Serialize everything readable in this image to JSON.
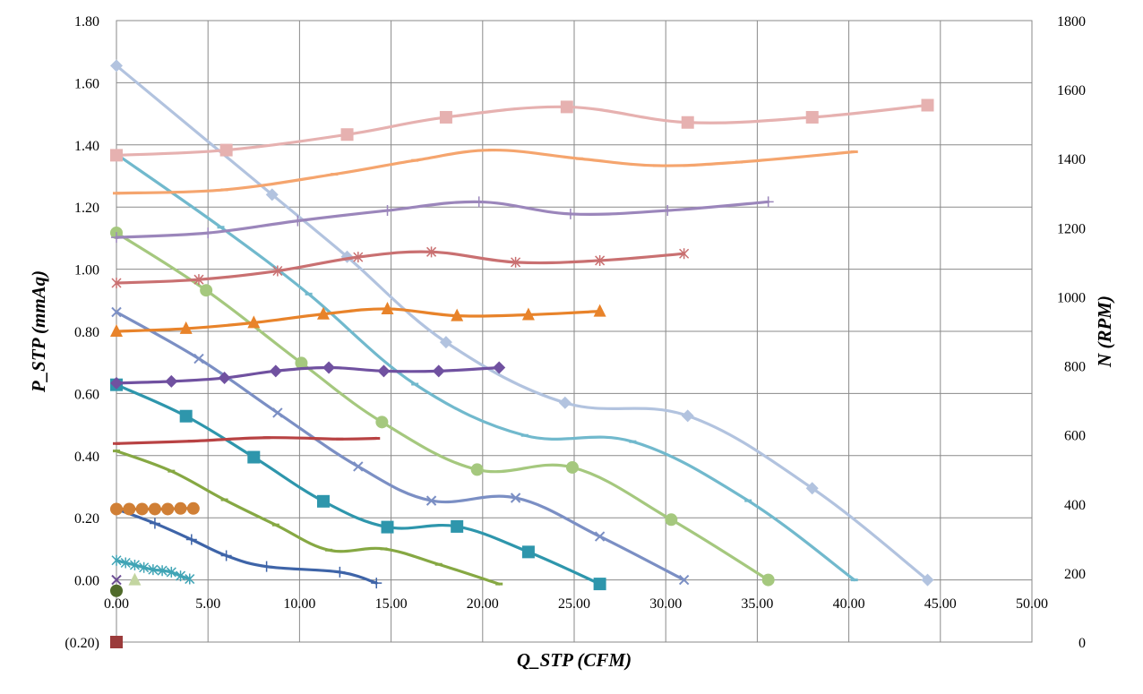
{
  "chart_data": {
    "type": "line",
    "title": "",
    "xlabel": "Q_STP (CFM)",
    "ylabel": "P_STP (mmAq)",
    "y2label": "N (RPM)",
    "xlim": [
      0,
      50
    ],
    "ylim": [
      -0.2,
      1.8
    ],
    "y2lim": [
      0,
      1800
    ],
    "x_ticks": [
      "0.00",
      "5.00",
      "10.00",
      "15.00",
      "20.00",
      "25.00",
      "30.00",
      "35.00",
      "40.00",
      "45.00",
      "50.00"
    ],
    "y_ticks": [
      "(0.20)",
      "0.00",
      "0.20",
      "0.40",
      "0.60",
      "0.80",
      "1.00",
      "1.20",
      "1.40",
      "1.60",
      "1.80"
    ],
    "y2_ticks": [
      "0",
      "200",
      "400",
      "600",
      "800",
      "1000",
      "1200",
      "1400",
      "1600",
      "1800"
    ],
    "grid": true,
    "legend": "none",
    "series": [
      {
        "axis": "left",
        "color": "#B2C3DF",
        "marker": "diamond",
        "points": [
          [
            0,
            1.655
          ],
          [
            8.5,
            1.24
          ],
          [
            12.6,
            1.04
          ],
          [
            18,
            0.765
          ],
          [
            24.5,
            0.57
          ],
          [
            31.2,
            0.528
          ],
          [
            38,
            0.295
          ],
          [
            44.3,
            0.0
          ]
        ]
      },
      {
        "axis": "left",
        "color": "#71B9CD",
        "marker": "dash",
        "points": [
          [
            0,
            1.37
          ],
          [
            5.7,
            1.135
          ],
          [
            10.5,
            0.92
          ],
          [
            16.3,
            0.63
          ],
          [
            22.3,
            0.465
          ],
          [
            28.2,
            0.445
          ],
          [
            34.5,
            0.255
          ],
          [
            40.3,
            0.0
          ]
        ]
      },
      {
        "axis": "left",
        "color": "#A5C87E",
        "marker": "circle",
        "points": [
          [
            0,
            1.117
          ],
          [
            4.9,
            0.932
          ],
          [
            10.1,
            0.698
          ],
          [
            14.5,
            0.508
          ],
          [
            19.7,
            0.355
          ],
          [
            24.9,
            0.362
          ],
          [
            30.3,
            0.194
          ],
          [
            35.6,
            0.0
          ]
        ]
      },
      {
        "axis": "left",
        "color": "#7B8FC4",
        "marker": "x",
        "points": [
          [
            0,
            0.862
          ],
          [
            4.5,
            0.712
          ],
          [
            8.8,
            0.538
          ],
          [
            13.2,
            0.365
          ],
          [
            17.2,
            0.255
          ],
          [
            21.8,
            0.264
          ],
          [
            26.4,
            0.14
          ],
          [
            31.0,
            0.0
          ]
        ]
      },
      {
        "axis": "left",
        "color": "#2E96AC",
        "marker": "square",
        "points": [
          [
            0,
            0.628
          ],
          [
            3.8,
            0.527
          ],
          [
            7.5,
            0.395
          ],
          [
            11.3,
            0.253
          ],
          [
            14.8,
            0.17
          ],
          [
            18.6,
            0.172
          ],
          [
            22.5,
            0.09
          ],
          [
            26.4,
            -0.013
          ]
        ]
      },
      {
        "axis": "left",
        "color": "#86A843",
        "marker": "dash",
        "points": [
          [
            0,
            0.415
          ],
          [
            3,
            0.35
          ],
          [
            5.9,
            0.258
          ],
          [
            8.7,
            0.177
          ],
          [
            11.6,
            0.096
          ],
          [
            14.6,
            0.1
          ],
          [
            17.6,
            0.05
          ],
          [
            20.9,
            -0.013
          ]
        ]
      },
      {
        "axis": "left",
        "color": "#3E64A8",
        "marker": "plus",
        "points": [
          [
            0,
            0.228
          ],
          [
            2.1,
            0.182
          ],
          [
            4.1,
            0.13
          ],
          [
            6,
            0.078
          ],
          [
            8.2,
            0.043
          ],
          [
            12.2,
            0.025
          ],
          [
            14.2,
            -0.01
          ]
        ]
      },
      {
        "axis": "left",
        "color": "#D07F35",
        "marker": "circle",
        "points": [
          [
            0,
            0.228
          ],
          [
            0.7,
            0.228
          ],
          [
            1.4,
            0.228
          ],
          [
            2.1,
            0.228
          ],
          [
            2.8,
            0.228
          ],
          [
            3.5,
            0.23
          ],
          [
            4.2,
            0.23
          ]
        ]
      },
      {
        "axis": "left",
        "color": "#40A4B5",
        "marker": "star",
        "points": [
          [
            0,
            0.063
          ],
          [
            0.5,
            0.055
          ],
          [
            1,
            0.048
          ],
          [
            1.5,
            0.04
          ],
          [
            2,
            0.033
          ],
          [
            2.5,
            0.03
          ],
          [
            3,
            0.025
          ],
          [
            3.5,
            0.013
          ],
          [
            4,
            0.003
          ]
        ]
      },
      {
        "axis": "left",
        "color": "#6B4C93",
        "marker": "x",
        "points": [
          [
            0,
            0.0
          ]
        ]
      },
      {
        "axis": "left",
        "color": "#C3D5A0",
        "marker": "triangle",
        "points": [
          [
            1,
            0.0
          ]
        ]
      },
      {
        "axis": "left",
        "color": "#4F6A2A",
        "marker": "circle",
        "points": [
          [
            0,
            -0.035
          ]
        ]
      },
      {
        "axis": "left",
        "color": "#9B3B3B",
        "marker": "square",
        "points": [
          [
            0,
            -0.2
          ]
        ]
      },
      {
        "axis": "right",
        "color": "#E6B1B0",
        "marker": "square",
        "points": [
          [
            0,
            1410
          ],
          [
            6,
            1425
          ],
          [
            12.6,
            1470
          ],
          [
            18,
            1520
          ],
          [
            24.6,
            1550
          ],
          [
            31.2,
            1505
          ],
          [
            38,
            1520
          ],
          [
            44.3,
            1555
          ]
        ]
      },
      {
        "axis": "right",
        "color": "#F5A56E",
        "marker": "dash",
        "points": [
          [
            0,
            1300
          ],
          [
            5.9,
            1310
          ],
          [
            11.9,
            1355
          ],
          [
            16.3,
            1395
          ],
          [
            20.5,
            1425
          ],
          [
            25.3,
            1400
          ],
          [
            29.5,
            1380
          ],
          [
            34,
            1390
          ],
          [
            40.3,
            1420
          ]
        ]
      },
      {
        "axis": "right",
        "color": "#9B86BB",
        "marker": "plus",
        "points": [
          [
            0,
            1172
          ],
          [
            5,
            1185
          ],
          [
            9.9,
            1220
          ],
          [
            14.8,
            1250
          ],
          [
            19.8,
            1275
          ],
          [
            24.8,
            1240
          ],
          [
            30.1,
            1250
          ],
          [
            35.6,
            1275
          ]
        ]
      },
      {
        "axis": "right",
        "color": "#C97071",
        "marker": "star",
        "points": [
          [
            0,
            1040
          ],
          [
            4.5,
            1050
          ],
          [
            8.8,
            1075
          ],
          [
            13.2,
            1115
          ],
          [
            17.2,
            1130
          ],
          [
            21.8,
            1100
          ],
          [
            26.4,
            1105
          ],
          [
            31.0,
            1125
          ]
        ]
      },
      {
        "axis": "right",
        "color": "#E8832A",
        "marker": "triangle",
        "points": [
          [
            0,
            900
          ],
          [
            3.8,
            908
          ],
          [
            7.5,
            925
          ],
          [
            11.3,
            950
          ],
          [
            14.8,
            965
          ],
          [
            18.6,
            945
          ],
          [
            22.5,
            948
          ],
          [
            26.4,
            958
          ]
        ]
      },
      {
        "axis": "right",
        "color": "#7051A0",
        "marker": "diamond",
        "points": [
          [
            0,
            750
          ],
          [
            3,
            755
          ],
          [
            5.9,
            765
          ],
          [
            8.7,
            785
          ],
          [
            11.6,
            795
          ],
          [
            14.6,
            785
          ],
          [
            17.6,
            785
          ],
          [
            20.9,
            795
          ]
        ]
      },
      {
        "axis": "right",
        "color": "#B84243",
        "marker": "dash",
        "points": [
          [
            0,
            575
          ],
          [
            4.1,
            582
          ],
          [
            8.2,
            592
          ],
          [
            12.2,
            588
          ],
          [
            14.2,
            590
          ]
        ]
      }
    ]
  }
}
